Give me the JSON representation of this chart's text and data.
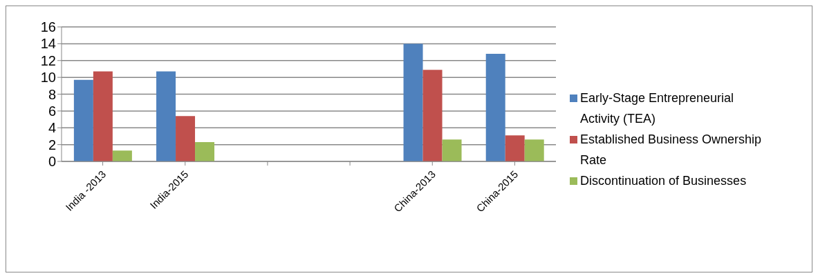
{
  "chart_data": {
    "type": "bar",
    "categories": [
      "India -2013",
      "India-2015",
      null,
      null,
      "China-2013",
      "China-2015"
    ],
    "series": [
      {
        "name": "Early-Stage Entrepreneurial Activity (TEA)",
        "color": "#4f81bd",
        "values": [
          9.7,
          10.7,
          null,
          null,
          14.0,
          12.8
        ]
      },
      {
        "name": "Established Business Ownership Rate",
        "color": "#c0504d",
        "values": [
          10.7,
          5.4,
          null,
          null,
          10.9,
          3.1
        ]
      },
      {
        "name": "Discontinuation of Businesses",
        "color": "#9bbb59",
        "values": [
          1.3,
          2.3,
          null,
          null,
          2.6,
          2.6
        ]
      }
    ],
    "ylim": [
      0,
      16
    ],
    "yticks": [
      0,
      2,
      4,
      6,
      8,
      10,
      12,
      14,
      16
    ],
    "grid": "y",
    "legend": "right"
  }
}
